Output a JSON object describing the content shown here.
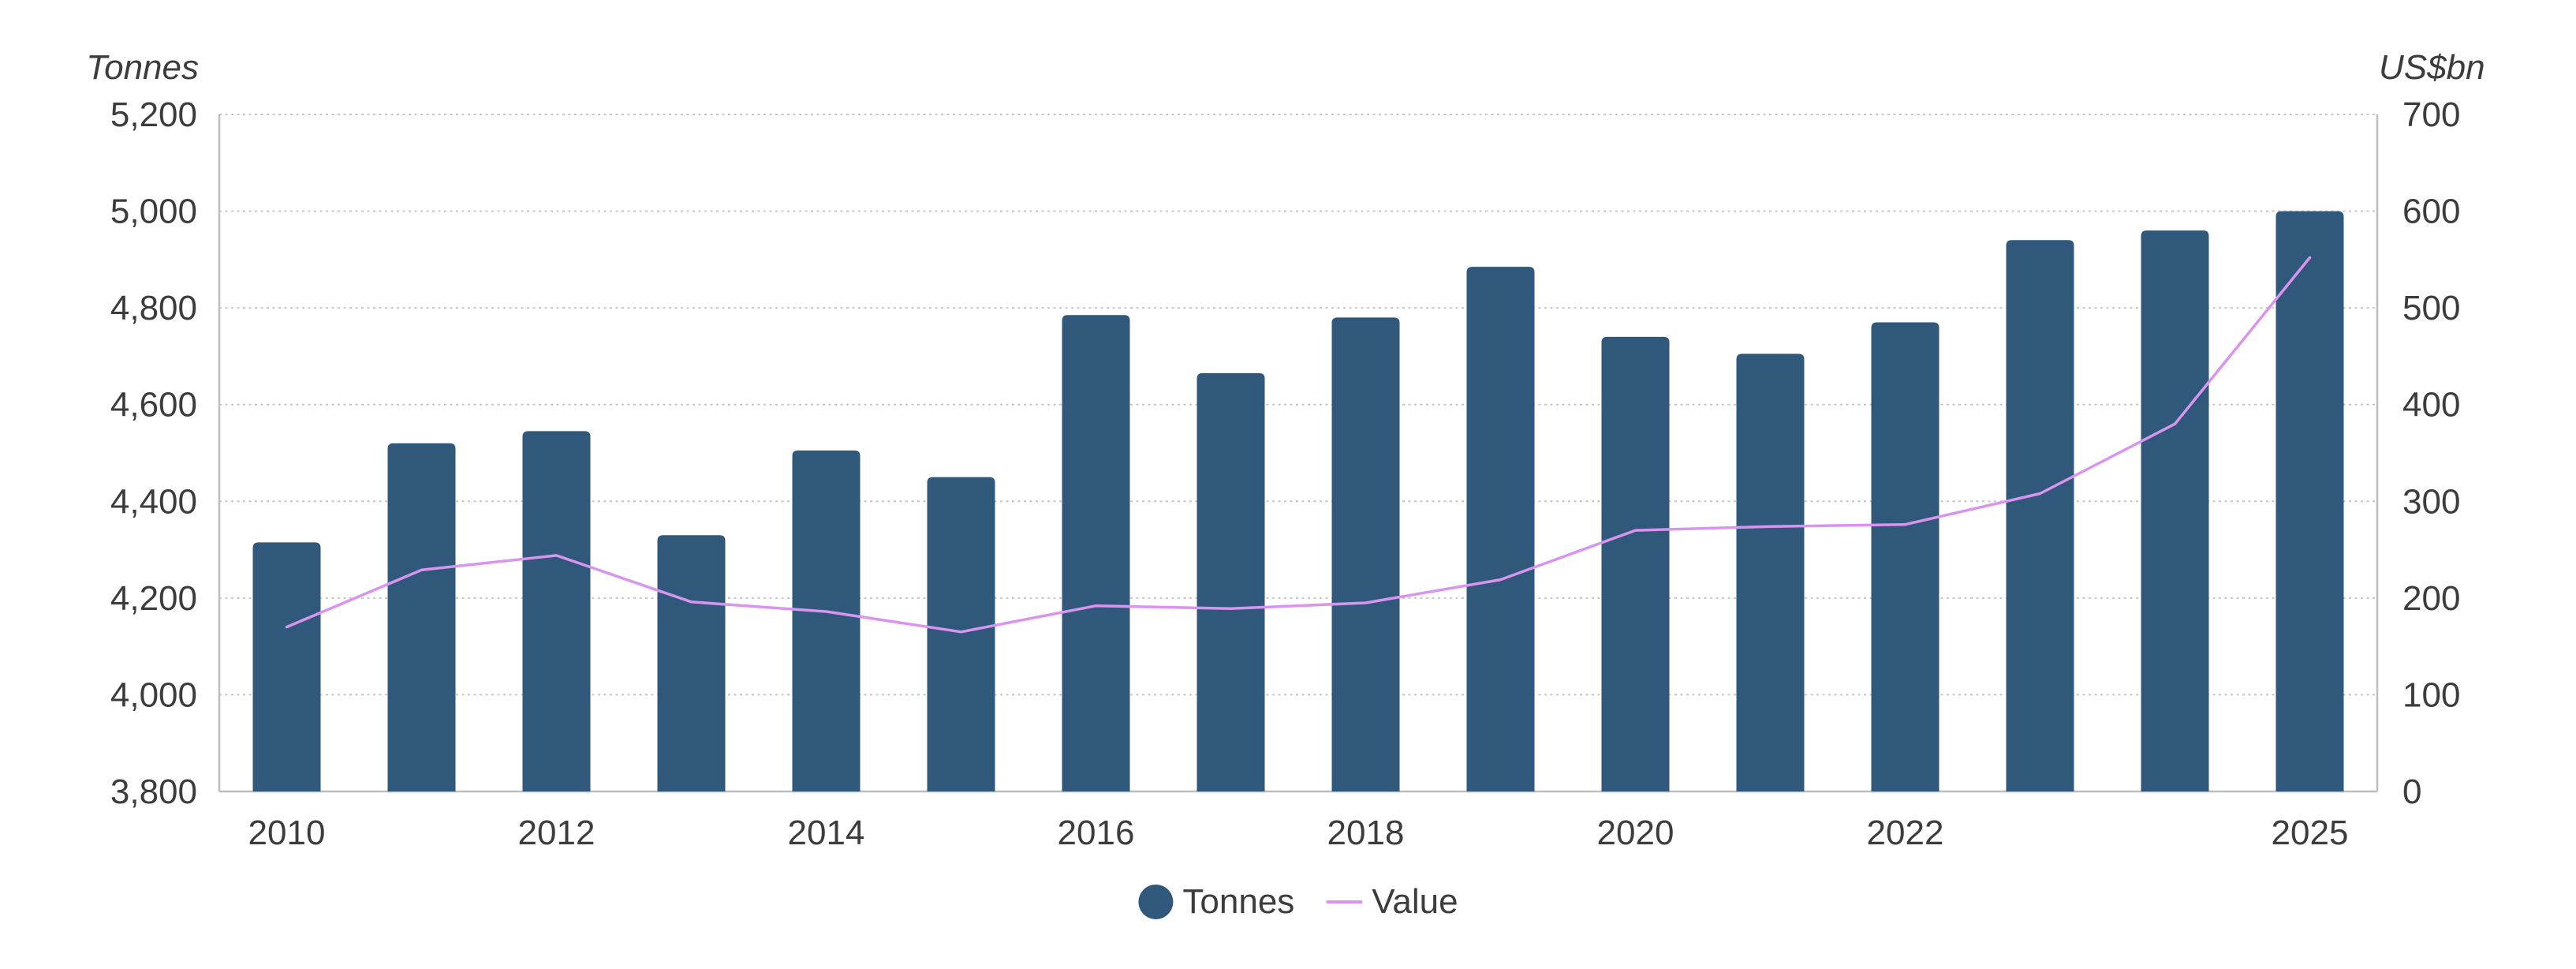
{
  "chart_data": {
    "type": "bar",
    "subtype": "bar+line-dual-axis",
    "title": "",
    "categories": [
      "2010",
      "2011",
      "2012",
      "2013",
      "2014",
      "2015",
      "2016",
      "2017",
      "2018",
      "2019",
      "2020",
      "2021",
      "2022",
      "2023",
      "2024",
      "2025"
    ],
    "series": [
      {
        "name": "Tonnes",
        "type": "bar",
        "axis": "left",
        "color": "#30587B",
        "values": [
          4315,
          4520,
          4545,
          4330,
          4505,
          4450,
          4785,
          4665,
          4780,
          4885,
          4740,
          4705,
          4770,
          4940,
          4960,
          5000
        ]
      },
      {
        "name": "Value",
        "type": "line",
        "axis": "right",
        "color": "#D894EF",
        "values": [
          170,
          229,
          244,
          196,
          186,
          165,
          192,
          189,
          195,
          219,
          270,
          274,
          276,
          308,
          380,
          552
        ]
      }
    ],
    "left_axis": {
      "title": "Tonnes",
      "min": 3800,
      "max": 5200,
      "step": 200,
      "tick_labels": [
        "3,800",
        "4,000",
        "4,200",
        "4,400",
        "4,600",
        "4,800",
        "5,000",
        "5,200"
      ]
    },
    "right_axis": {
      "title": "US$bn",
      "min": 0,
      "max": 700,
      "step": 100,
      "tick_labels": [
        "0",
        "100",
        "200",
        "300",
        "400",
        "500",
        "600",
        "700"
      ]
    },
    "x_axis": {
      "tick_labels": [
        "2010",
        "2012",
        "2014",
        "2016",
        "2018",
        "2020",
        "2022",
        "2025"
      ],
      "tick_category_indices": [
        0,
        2,
        4,
        6,
        8,
        10,
        12,
        15
      ]
    },
    "legend": [
      {
        "label": "Tonnes",
        "marker": "circle",
        "color": "#30587B"
      },
      {
        "label": "Value",
        "marker": "line",
        "color": "#D894EF"
      }
    ],
    "grid": "horizontal-dotted",
    "colors": {
      "bar": "#30587B",
      "line": "#D894EF",
      "text": "#3c3c3c",
      "gridline": "#c6c6c6",
      "axis_line": "#bdbdbd",
      "background": "#ffffff"
    }
  }
}
